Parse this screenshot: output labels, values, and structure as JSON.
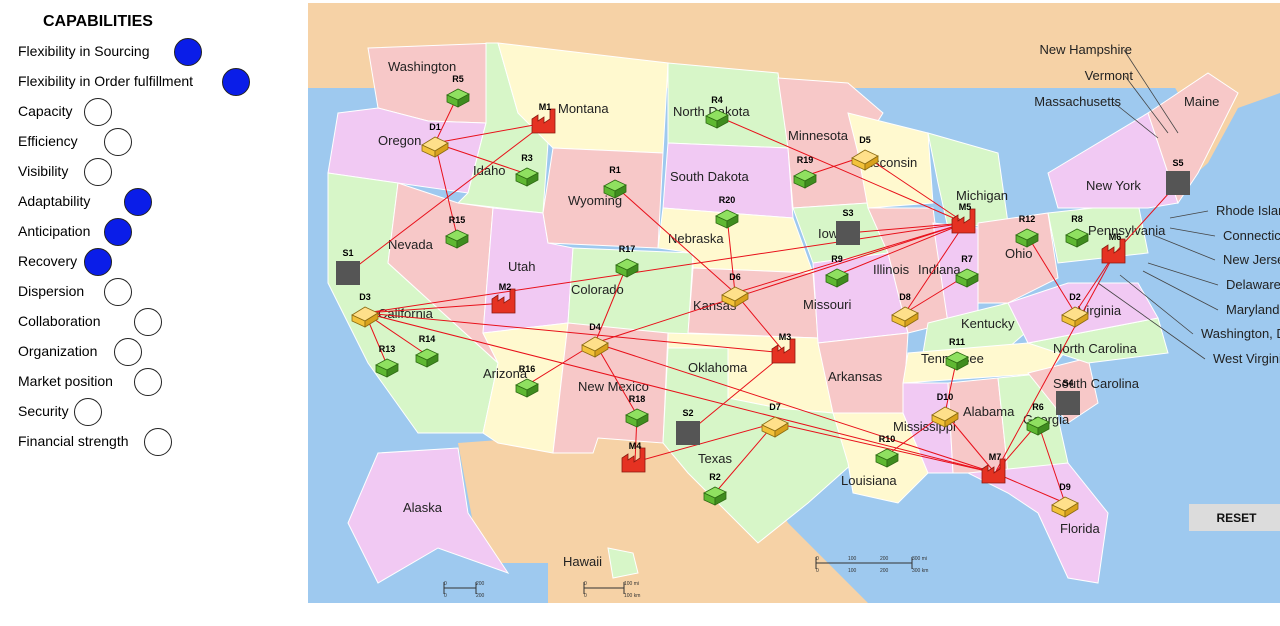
{
  "panel": {
    "title": "CAPABILITIES",
    "items": [
      {
        "label": "Flexibility in Sourcing",
        "active": true
      },
      {
        "label": "Flexibility in Order fulfillment",
        "active": true
      },
      {
        "label": "Capacity",
        "active": false
      },
      {
        "label": "Efficiency",
        "active": false
      },
      {
        "label": "Visibility",
        "active": false
      },
      {
        "label": "Adaptability",
        "active": true
      },
      {
        "label": "Anticipation",
        "active": true
      },
      {
        "label": "Recovery",
        "active": true
      },
      {
        "label": "Dispersion",
        "active": false
      },
      {
        "label": "Collaboration",
        "active": false
      },
      {
        "label": "Organization",
        "active": false
      },
      {
        "label": "Market position",
        "active": false
      },
      {
        "label": "Security",
        "active": false
      },
      {
        "label": "Financial strength",
        "active": false
      }
    ]
  },
  "map": {
    "states": [
      "Washington",
      "Oregon",
      "Idaho",
      "Montana",
      "Nevada",
      "Utah",
      "Wyoming",
      "Colorado",
      "Arizona",
      "New Mexico",
      "North Dakota",
      "South Dakota",
      "Nebraska",
      "Kansas",
      "Oklahoma",
      "Texas",
      "Minnesota",
      "Iowa",
      "Missouri",
      "Arkansas",
      "Louisiana",
      "Wisconsin",
      "Illinois",
      "Michigan",
      "Indiana",
      "Ohio",
      "Kentucky",
      "Tennessee",
      "Mississippi",
      "Alabama",
      "Georgia",
      "Florida",
      "North Carolina",
      "South Carolina",
      "Pennsylvania",
      "New York",
      "Maine",
      "Virginia",
      "California",
      "Alaska",
      "Hawaii"
    ],
    "callouts": [
      "New Hampshire",
      "Vermont",
      "Massachusetts",
      "Rhode Island",
      "Connecticut",
      "New Jersey",
      "Delaware",
      "Maryland",
      "Washington, D.C.",
      "West Virginia"
    ],
    "suppliers": [
      "S1",
      "S2",
      "S3",
      "S4",
      "S5"
    ],
    "manufacturers": [
      "M1",
      "M2",
      "M3",
      "M4",
      "M5",
      "M6",
      "M7"
    ],
    "distributors": [
      "D1",
      "D2",
      "D3",
      "D4",
      "D5",
      "D6",
      "D7",
      "D8",
      "D9",
      "D10"
    ],
    "retailers": [
      "R1",
      "R2",
      "R3",
      "R4",
      "R5",
      "R6",
      "R7",
      "R8",
      "R9",
      "R10",
      "R11",
      "R12",
      "R13",
      "R14",
      "R15",
      "R16",
      "R17",
      "R18",
      "R19",
      "R20"
    ],
    "scale_labels": [
      "0",
      "100",
      "200",
      "300 mi",
      "0",
      "100",
      "200",
      "300 km",
      "0",
      "200",
      "0",
      "200",
      "0",
      "100 mi",
      "0",
      "100 km"
    ]
  },
  "reset_label": "RESET",
  "colors": {
    "active_circle": "#0a1de8",
    "link": "#e8101a",
    "water": "#9ec9ef",
    "foreign_land": "#f6d2a6",
    "retailer": "#5fb832",
    "distributor": "#f2c23b",
    "manufacturer": "#e53222",
    "supplier": "#555555"
  }
}
